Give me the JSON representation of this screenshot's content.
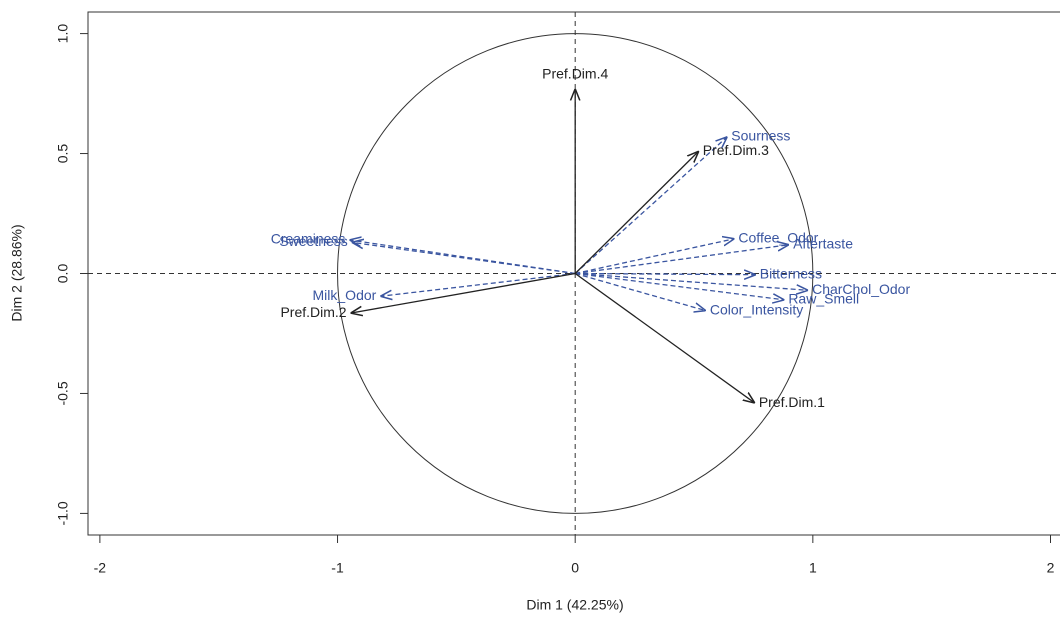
{
  "chart_data": {
    "type": "correlation-circle",
    "xlabel": "Dim 1 (42.25%)",
    "ylabel": "Dim 2 (28.86%)",
    "xlim": [
      -2.05,
      2.04
    ],
    "ylim": [
      -1.09,
      1.09
    ],
    "xticks": [
      -2,
      -1,
      0,
      1,
      2
    ],
    "yticks": [
      {
        "value": -1,
        "label": "-1.0"
      },
      {
        "value": -0.5,
        "label": "-0.5"
      },
      {
        "value": 0,
        "label": "0.0"
      },
      0.5,
      {
        "value": 1,
        "label": "1.0"
      }
    ],
    "variables": {
      "color": "#3a55a0",
      "labels": [
        "Creaminess",
        "Sweetness",
        "Milk_Odor",
        "Sourness",
        "Coffee_Odor",
        "Aftertaste",
        "Bitterness",
        "CharChol_Odor",
        "Raw_Smell",
        "Color_Intensity"
      ],
      "x": [
        -0.95,
        -0.94,
        -0.82,
        0.64,
        0.67,
        0.9,
        0.76,
        0.98,
        0.88,
        0.55
      ],
      "y": [
        0.14,
        0.13,
        -0.095,
        0.57,
        0.145,
        0.12,
        -0.005,
        -0.07,
        -0.11,
        -0.155
      ]
    },
    "supplementary": {
      "color": "#222222",
      "labels": [
        "Pref.Dim.1",
        "Pref.Dim.2",
        "Pref.Dim.3",
        "Pref.Dim.4"
      ],
      "x": [
        0.756,
        -0.945,
        0.52,
        0.0
      ],
      "y": [
        -0.54,
        -0.165,
        0.51,
        0.77
      ]
    }
  }
}
